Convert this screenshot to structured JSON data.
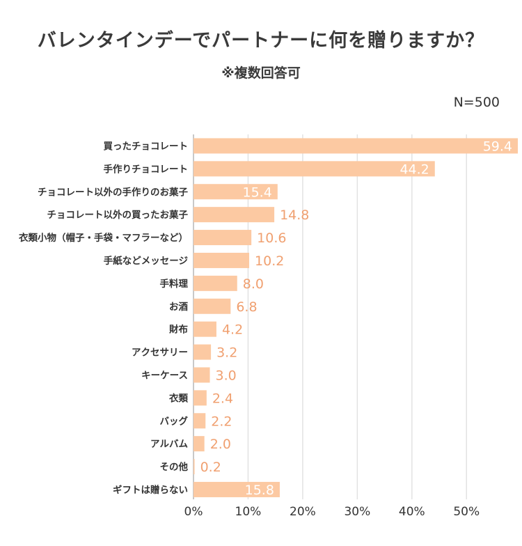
{
  "title": "バレンタインデーでパートナーに何を贈りますか？",
  "subtitle": "※複数回答可",
  "sample_size": "N=500",
  "chart_data": {
    "type": "bar",
    "orientation": "horizontal",
    "categories": [
      "買ったチョコレート",
      "手作りチョコレート",
      "チョコレート以外の手作りのお菓子",
      "チョコレート以外の買ったお菓子",
      "衣類小物（帽子・手袋・マフラーなど）",
      "手紙などメッセージ",
      "手料理",
      "お酒",
      "財布",
      "アクセサリー",
      "キーケース",
      "衣類",
      "バッグ",
      "アルバム",
      "その他",
      "ギフトは贈らない"
    ],
    "values": [
      59.4,
      44.2,
      15.4,
      14.8,
      10.6,
      10.2,
      8.0,
      6.8,
      4.2,
      3.2,
      3.0,
      2.4,
      2.2,
      2.0,
      0.2,
      15.8
    ],
    "value_labels": [
      "59.4",
      "44.2",
      "15.4",
      "14.8",
      "10.6",
      "10.2",
      "8.0",
      "6.8",
      "4.2",
      "3.2",
      "3.0",
      "2.4",
      "2.2",
      "2.0",
      "0.2",
      "15.8"
    ],
    "xlim": [
      0,
      59.4
    ],
    "xticks": [
      0,
      10,
      20,
      30,
      40,
      50
    ],
    "xtick_labels": [
      "0%",
      "10%",
      "20%",
      "30%",
      "40%",
      "50%"
    ],
    "grid": true,
    "bar_color": "#fcc9a2",
    "label_color": "#f0a070",
    "label_color_inside": "#ffffff",
    "grid_color": "#e2e2e2"
  }
}
